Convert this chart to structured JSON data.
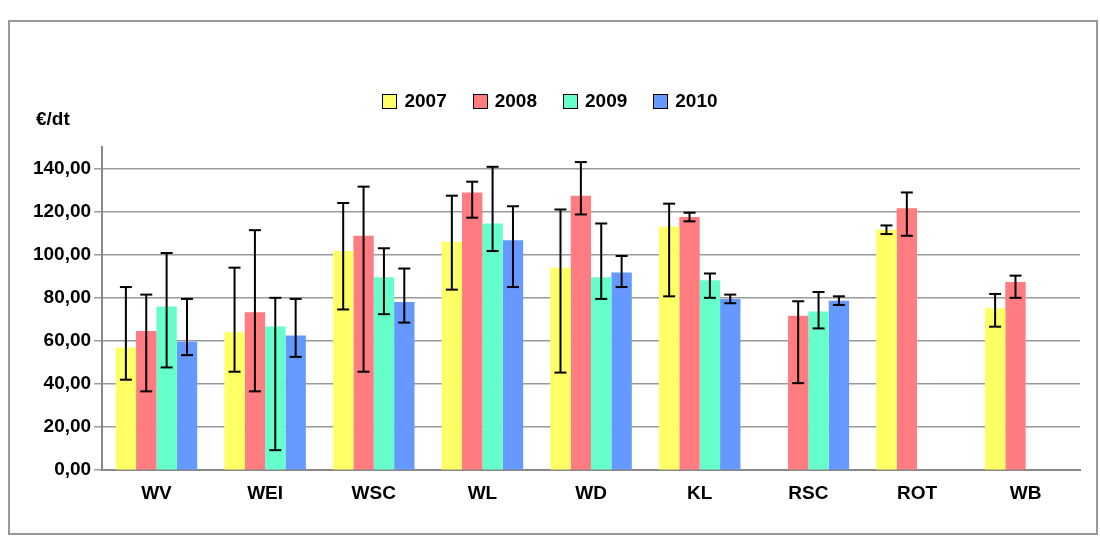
{
  "chart_data": {
    "type": "bar",
    "ylabel": "€/dt",
    "categories": [
      "WV",
      "WEI",
      "WSC",
      "WL",
      "WD",
      "KL",
      "RSC",
      "ROT",
      "WB"
    ],
    "series": [
      {
        "name": "2007",
        "color": "#ffff66",
        "values": [
          57,
          64,
          101.7,
          106,
          94,
          113,
          null,
          111.6,
          75.2
        ],
        "errors": [
          [
            42,
            85
          ],
          [
            45.7,
            94
          ],
          [
            74.6,
            124
          ],
          [
            83.8,
            127.4
          ],
          [
            45.3,
            121
          ],
          [
            80.7,
            123.7
          ],
          null,
          [
            109.6,
            113.6
          ],
          [
            66.6,
            81.8
          ]
        ]
      },
      {
        "name": "2008",
        "color": "#ff7c80",
        "values": [
          64.6,
          73.3,
          108.8,
          128.9,
          127.4,
          117.5,
          71.7,
          121.6,
          87.4
        ],
        "errors": [
          [
            36.6,
            81.5
          ],
          [
            36.6,
            111.4
          ],
          [
            45.7,
            131.6
          ],
          [
            117.2,
            133.9
          ],
          [
            118.7,
            143
          ],
          [
            115.5,
            119.5
          ],
          [
            40.4,
            78.4
          ],
          [
            108.8,
            128.9
          ],
          [
            80,
            90.3
          ]
        ]
      },
      {
        "name": "2009",
        "color": "#66ffcc",
        "values": [
          76,
          66.7,
          89.5,
          114.5,
          89.5,
          88.1,
          73.7,
          null,
          null
        ],
        "errors": [
          [
            47.7,
            100.8
          ],
          [
            9.3,
            80
          ],
          [
            72.4,
            103
          ],
          [
            101.7,
            140.8
          ],
          [
            79.5,
            114.5
          ],
          [
            80,
            91.3
          ],
          [
            65.8,
            82.7
          ],
          null,
          null
        ]
      },
      {
        "name": "2010",
        "color": "#6699ff",
        "values": [
          59.6,
          62.5,
          78.1,
          106.7,
          91.7,
          79.5,
          78.7,
          null,
          null
        ],
        "errors": [
          [
            53.4,
            79.5
          ],
          [
            52.6,
            79.5
          ],
          [
            68.5,
            93.6
          ],
          [
            85,
            122.5
          ],
          [
            85,
            99.4
          ],
          [
            77.5,
            81.5
          ],
          [
            76.7,
            80.7
          ],
          null,
          null
        ]
      }
    ],
    "ylim": [
      0,
      150
    ],
    "yticks": [
      {
        "value": 0,
        "label": "0,00"
      },
      {
        "value": 20,
        "label": "20,00"
      },
      {
        "value": 40,
        "label": "40,00"
      },
      {
        "value": 60,
        "label": "60,00"
      },
      {
        "value": 80,
        "label": "80,00"
      },
      {
        "value": 100,
        "label": "100,00"
      },
      {
        "value": 120,
        "label": "120,00"
      },
      {
        "value": 140,
        "label": "140,00"
      }
    ],
    "grid": "y",
    "legend": "top"
  }
}
